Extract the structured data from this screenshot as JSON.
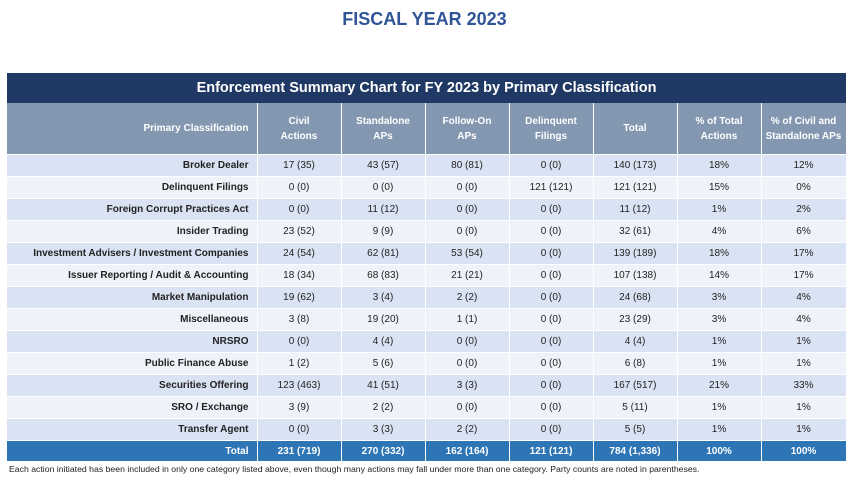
{
  "page_title": "FISCAL YEAR 2023",
  "table_title": "Enforcement Summary Chart for FY 2023 by Primary Classification",
  "columns": [
    [
      "Primary Classification"
    ],
    [
      "Civil",
      "Actions"
    ],
    [
      "Standalone",
      "APs"
    ],
    [
      "Follow-On",
      "APs"
    ],
    [
      "Delinquent",
      "Filings"
    ],
    [
      "Total"
    ],
    [
      "% of Total",
      "Actions"
    ],
    [
      "% of Civil and",
      "Standalone APs"
    ]
  ],
  "rows": [
    [
      "Broker Dealer",
      "17 (35)",
      "43 (57)",
      "80 (81)",
      "0 (0)",
      "140 (173)",
      "18%",
      "12%"
    ],
    [
      "Delinquent Filings",
      "0 (0)",
      "0 (0)",
      "0 (0)",
      "121 (121)",
      "121 (121)",
      "15%",
      "0%"
    ],
    [
      "Foreign Corrupt Practices Act",
      "0 (0)",
      "11 (12)",
      "0 (0)",
      "0 (0)",
      "11 (12)",
      "1%",
      "2%"
    ],
    [
      "Insider Trading",
      "23 (52)",
      "9 (9)",
      "0 (0)",
      "0 (0)",
      "32 (61)",
      "4%",
      "6%"
    ],
    [
      "Investment Advisers / Investment Companies",
      "24 (54)",
      "62 (81)",
      "53 (54)",
      "0 (0)",
      "139 (189)",
      "18%",
      "17%"
    ],
    [
      "Issuer Reporting / Audit & Accounting",
      "18 (34)",
      "68 (83)",
      "21 (21)",
      "0 (0)",
      "107 (138)",
      "14%",
      "17%"
    ],
    [
      "Market Manipulation",
      "19 (62)",
      "3 (4)",
      "2 (2)",
      "0 (0)",
      "24 (68)",
      "3%",
      "4%"
    ],
    [
      "Miscellaneous",
      "3 (8)",
      "19 (20)",
      "1 (1)",
      "0 (0)",
      "23 (29)",
      "3%",
      "4%"
    ],
    [
      "NRSRO",
      "0 (0)",
      "4 (4)",
      "0 (0)",
      "0 (0)",
      "4 (4)",
      "1%",
      "1%"
    ],
    [
      "Public Finance Abuse",
      "1 (2)",
      "5 (6)",
      "0 (0)",
      "0 (0)",
      "6 (8)",
      "1%",
      "1%"
    ],
    [
      "Securities Offering",
      "123 (463)",
      "41 (51)",
      "3 (3)",
      "0 (0)",
      "167 (517)",
      "21%",
      "33%"
    ],
    [
      "SRO / Exchange",
      "3 (9)",
      "2 (2)",
      "0 (0)",
      "0 (0)",
      "5 (11)",
      "1%",
      "1%"
    ],
    [
      "Transfer Agent",
      "0 (0)",
      "3 (3)",
      "2 (2)",
      "0 (0)",
      "5 (5)",
      "1%",
      "1%"
    ]
  ],
  "total_row": [
    "Total",
    "231 (719)",
    "270 (332)",
    "162 (164)",
    "121 (121)",
    "784 (1,336)",
    "100%",
    "100%"
  ],
  "footnote": "Each action initiated has been included in only one category listed above, even though many actions may fall under more than one category.  Party counts are noted in parentheses."
}
